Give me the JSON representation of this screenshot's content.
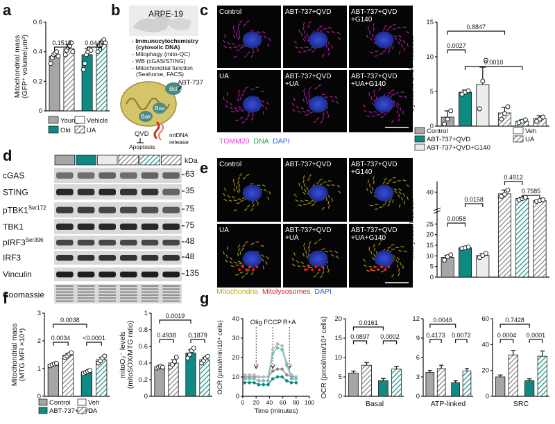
{
  "panels": {
    "a": "a",
    "b": "b",
    "c": "c",
    "d": "d",
    "e": "e",
    "f": "f",
    "g": "g"
  },
  "colors": {
    "grey": "#a6a6a6",
    "teal": "#0f8a83",
    "light": "#e6e6e6",
    "hatch": "#808080"
  },
  "chart_data": [
    {
      "id": "a",
      "type": "bar",
      "ylabel": "Mitochondrial mass\n(GFP⁺ volume/μm³)",
      "ylim": [
        0,
        0.6
      ],
      "yticks": [
        0,
        0.2,
        0.4,
        0.6
      ],
      "categories": [
        "Young",
        "Old",
        "Young UA",
        "Old UA"
      ],
      "values": [
        0.37,
        0.42,
        0.38,
        0.45
      ],
      "errors": [
        0.02,
        0.03,
        0.04,
        0.02
      ],
      "points": [
        [
          0.32,
          0.36,
          0.38,
          0.39,
          0.4,
          0.37
        ],
        [
          0.38,
          0.41,
          0.43,
          0.44,
          0.46,
          0.4
        ],
        [
          0.28,
          0.32,
          0.38,
          0.4,
          0.42,
          0.41
        ],
        [
          0.4,
          0.44,
          0.45,
          0.47,
          0.48,
          0.46
        ]
      ],
      "pvalues": [
        {
          "text": "0.1518",
          "from": 0,
          "to": 1
        },
        {
          "text": "0.0442",
          "from": 2,
          "to": 3
        }
      ],
      "legend": [
        "Young",
        "Old",
        "Vehicle",
        "UA"
      ]
    },
    {
      "id": "c",
      "type": "bar",
      "ylabel": "Cytosolic DNA⁺ foci/cell",
      "ylim": [
        0,
        15
      ],
      "yticks": [
        0,
        5,
        10,
        15
      ],
      "categories": [
        "Control",
        "ABT-737+QVD",
        "ABT-737+QVD+G140",
        "Control UA",
        "ABT-737+QVD UA",
        "ABT-737+QVD+G140 UA"
      ],
      "values": [
        1.3,
        4.9,
        6.0,
        1.9,
        0.7,
        1.1
      ],
      "errors": [
        0.9,
        0.3,
        2.5,
        0.8,
        0.2,
        0.4
      ],
      "points": [
        [
          0.3,
          1.0,
          2.2
        ],
        [
          4.6,
          4.9,
          5.1
        ],
        [
          2.5,
          6.5,
          9.5
        ],
        [
          1.0,
          1.8,
          2.8
        ],
        [
          0.5,
          0.7,
          0.9
        ],
        [
          0.7,
          1.0,
          1.3
        ]
      ],
      "pvalues": [
        {
          "text": "0.8847",
          "from": 0,
          "to": 3
        },
        {
          "text": "0.0027",
          "from": 0,
          "to": 1
        },
        {
          "text": "0.0010",
          "from": 1,
          "to": 4
        }
      ],
      "legend": [
        "Control",
        "ABT-737+QVD",
        "ABT-737+QVD+G140",
        "Veh",
        "UA"
      ]
    },
    {
      "id": "e",
      "type": "bar",
      "ylabel": "Mitolysosomes/cell",
      "ylim": [
        0,
        45
      ],
      "yticks": [
        0,
        5,
        10,
        15,
        20,
        25,
        40
      ],
      "categories": [
        "Control",
        "ABT-737+QVD",
        "ABT-737+QVD+G140",
        "Control UA",
        "ABT-737+QVD UA",
        "ABT-737+QVD+G140 UA"
      ],
      "values": [
        9.3,
        13.8,
        10.2,
        39.2,
        37.0,
        36.0
      ],
      "errors": [
        1.0,
        0.4,
        0.9,
        1.8,
        0.6,
        0.4
      ],
      "points": [
        [
          8.0,
          9.6,
          10.5
        ],
        [
          13.5,
          13.8,
          14.2
        ],
        [
          9.2,
          10.2,
          11.2
        ],
        [
          38.0,
          39.0,
          41.0
        ],
        [
          36.3,
          37.0,
          37.6
        ],
        [
          35.7,
          36.0,
          36.4
        ]
      ],
      "pvalues": [
        {
          "text": "0.0058",
          "from": 0,
          "to": 1
        },
        {
          "text": "0.0158",
          "from": 1,
          "to": 2
        },
        {
          "text": "0.4912",
          "from": 3,
          "to": 4
        },
        {
          "text": "0.7585",
          "from": 4,
          "to": 5
        }
      ]
    },
    {
      "id": "f1",
      "type": "bar",
      "ylabel": "Mitochondrial mass\n(MTG MFI ×10⁴)",
      "ylim": [
        0,
        3
      ],
      "yticks": [
        0,
        1,
        2,
        3
      ],
      "categories": [
        "Control",
        "Control UA",
        "ABT-737+QVD",
        "ABT-737+QVD UA"
      ],
      "values": [
        1.15,
        1.48,
        0.88,
        1.32
      ],
      "errors": [
        0.03,
        0.06,
        0.04,
        0.08
      ],
      "points": [
        [
          1.1,
          1.14,
          1.17,
          1.19
        ],
        [
          1.4,
          1.45,
          1.52,
          1.57
        ],
        [
          0.82,
          0.86,
          0.9,
          0.93
        ],
        [
          1.2,
          1.28,
          1.38,
          1.45
        ]
      ],
      "pvalues": [
        {
          "text": "0.0038",
          "from": 0,
          "to": 2
        },
        {
          "text": "0.0034",
          "from": 0,
          "to": 1
        },
        {
          "text": "<0.0001",
          "from": 2,
          "to": 3
        }
      ],
      "legend": [
        "Control",
        "ABT-737+QVD",
        "Veh",
        "UA"
      ]
    },
    {
      "id": "f2",
      "type": "bar",
      "ylabel": "mitoO₂⁻ levels\n(mitoSOX/MTG ratio)",
      "ylim": [
        0,
        1.0
      ],
      "yticks": [
        0,
        0.2,
        0.4,
        0.6,
        0.8,
        1.0
      ],
      "categories": [
        "Control",
        "Control UA",
        "ABT-737+QVD",
        "ABT-737+QVD UA"
      ],
      "values": [
        0.35,
        0.4,
        0.52,
        0.44
      ],
      "errors": [
        0.01,
        0.04,
        0.04,
        0.03
      ],
      "points": [
        [
          0.34,
          0.35,
          0.36,
          0.35
        ],
        [
          0.35,
          0.38,
          0.42,
          0.47
        ],
        [
          0.46,
          0.5,
          0.55,
          0.58
        ],
        [
          0.4,
          0.43,
          0.46,
          0.48
        ]
      ],
      "pvalues": [
        {
          "text": "0.0019",
          "from": 0,
          "to": 2
        },
        {
          "text": "0.4938",
          "from": 0,
          "to": 1
        },
        {
          "text": "0.1879",
          "from": 2,
          "to": 3
        }
      ]
    },
    {
      "id": "g1",
      "type": "line",
      "ylabel": "OCR (pmol/min/10⁴ cells)",
      "xlabel": "Time (minutes)",
      "xlim": [
        0,
        100
      ],
      "ylim": [
        0,
        40
      ],
      "xticks": [
        0,
        20,
        40,
        60,
        80,
        100
      ],
      "yticks": [
        0,
        10,
        20,
        30,
        40
      ],
      "annotations": [
        {
          "text": "Olig",
          "x": 20
        },
        {
          "text": "FCCP",
          "x": 45
        },
        {
          "text": "R+A",
          "x": 70
        }
      ],
      "x": [
        3,
        10,
        17,
        24,
        31,
        38,
        45,
        52,
        59,
        66,
        73,
        80
      ],
      "series": [
        {
          "values": [
            10,
            10,
            10,
            10,
            10,
            10,
            13,
            14,
            14,
            11,
            10,
            10
          ]
        },
        {
          "values": [
            11,
            11,
            11,
            10,
            10,
            10,
            24,
            27,
            26,
            17,
            11,
            10
          ]
        },
        {
          "values": [
            7,
            7,
            7,
            6,
            6,
            6,
            9,
            10,
            10,
            8,
            7,
            7
          ]
        },
        {
          "values": [
            9,
            9,
            9,
            8,
            8,
            8,
            22,
            25,
            24,
            16,
            9,
            9
          ]
        }
      ]
    },
    {
      "id": "g2",
      "type": "bar",
      "title": "Basal",
      "ylabel": "OCR (pmol/min/10⁴ cells)",
      "ylim": [
        0,
        20
      ],
      "yticks": [
        0,
        5,
        10,
        15,
        20
      ],
      "categories": [
        "Control",
        "Control UA",
        "ABT-737+QVD",
        "ABT-737+QVD UA"
      ],
      "values": [
        6.0,
        8.0,
        4.0,
        7.0
      ],
      "errors": [
        0.5,
        0.7,
        0.6,
        0.7
      ],
      "pvalues": [
        {
          "text": "0.0161",
          "from": 0,
          "to": 2
        },
        {
          "text": "0.0897",
          "from": 0,
          "to": 1
        },
        {
          "text": "0.0002",
          "from": 2,
          "to": 3
        }
      ]
    },
    {
      "id": "g3",
      "type": "bar",
      "title": "ATP-linked",
      "ylim": [
        0,
        12
      ],
      "yticks": [
        0,
        3,
        6,
        9,
        12
      ],
      "categories": [
        "Control",
        "Control UA",
        "ABT-737+QVD",
        "ABT-737+QVD UA"
      ],
      "values": [
        3.7,
        4.3,
        2.1,
        3.9
      ],
      "errors": [
        0.3,
        0.5,
        0.3,
        0.4
      ],
      "pvalues": [
        {
          "text": "0.0046",
          "from": 0,
          "to": 2
        },
        {
          "text": "0.4173",
          "from": 0,
          "to": 1
        },
        {
          "text": "0.0072",
          "from": 2,
          "to": 3
        }
      ]
    },
    {
      "id": "g4",
      "type": "bar",
      "title": "SRC",
      "ylim": [
        0,
        60
      ],
      "yticks": [
        0,
        20,
        40,
        60
      ],
      "categories": [
        "Control",
        "Control UA",
        "ABT-737+QVD",
        "ABT-737+QVD UA"
      ],
      "values": [
        15,
        32,
        12,
        31
      ],
      "errors": [
        1.5,
        3.5,
        1.5,
        4.0
      ],
      "pvalues": [
        {
          "text": "0.7428",
          "from": 0,
          "to": 2
        },
        {
          "text": "0.0004",
          "from": 0,
          "to": 1
        },
        {
          "text": "0.0001",
          "from": 2,
          "to": 3
        }
      ]
    }
  ],
  "panel_b": {
    "cell_line": "ARPE-19",
    "lines": [
      "- Immunocytochemistry",
      "(cytosolic DNA)",
      "- Mitophagy (mito-QC)",
      "- WB (cGAS/STING)",
      "- Mitochondrial function",
      "(Seahorse, FACS)"
    ],
    "labels": {
      "abt": "ABT-737",
      "bcl2": "Bcl-2",
      "bax": "Bax",
      "bak": "Bak",
      "qvd": "QVD",
      "apoptosis": "Apoptosis",
      "mtdna": "mtDNA",
      "release": "release"
    }
  },
  "panel_c": {
    "tiles": [
      "Control",
      "ABT-737+QVD",
      "ABT-737+QVD\n+G140",
      "UA",
      "ABT-737+QVD\n+UA",
      "ABT-737+QVD\n+UA+G140"
    ],
    "stain": [
      "TOMM20",
      "DNA",
      "DAPI"
    ]
  },
  "panel_e": {
    "tiles": [
      "Control",
      "ABT-737+QVD",
      "ABT-737+QVD\n+G140",
      "UA",
      "ABT-737+QVD\n+UA",
      "ABT-737+QVD\n+UA+G140"
    ],
    "stain": [
      "Mitochondria",
      "Mitolysosomes",
      "DAPI"
    ]
  },
  "panel_d": {
    "kda": "kDa",
    "rows": [
      {
        "label": "cGAS",
        "sup": "",
        "kda": "63"
      },
      {
        "label": "STING",
        "sup": "",
        "kda": "35"
      },
      {
        "label": "pTBK1",
        "sup": "Ser172",
        "kda": "75"
      },
      {
        "label": "TBK1",
        "sup": "",
        "kda": "75"
      },
      {
        "label": "pIRF3",
        "sup": "Ser396",
        "kda": "48"
      },
      {
        "label": "IRF3",
        "sup": "",
        "kda": "48"
      },
      {
        "label": "Vinculin",
        "sup": "",
        "kda": "135"
      },
      {
        "label": "Coomassie",
        "sup": "",
        "kda": ""
      }
    ]
  }
}
